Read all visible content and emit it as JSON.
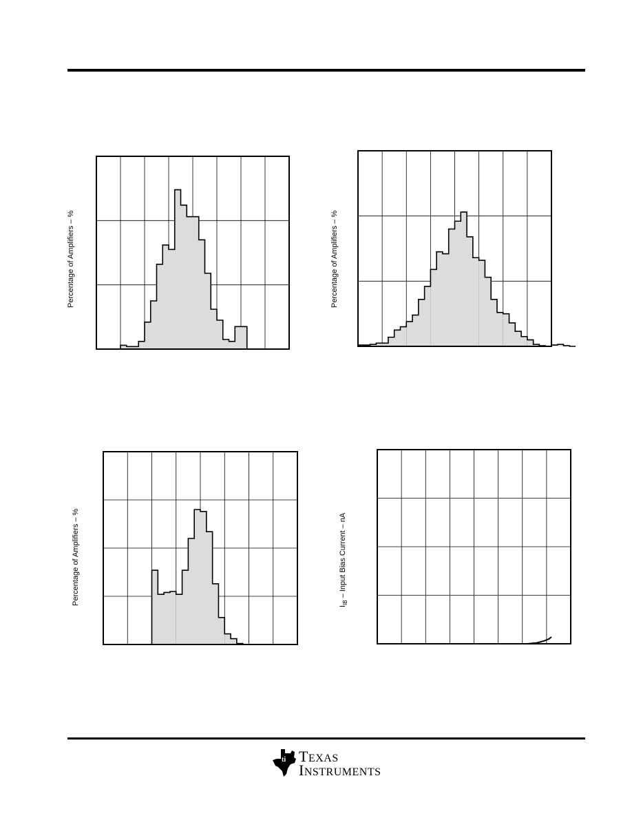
{
  "header": {},
  "charts": {
    "c1": {
      "ylabel": "Percentage of Amplifiers – %"
    },
    "c2": {
      "ylabel": "Percentage of Amplifiers – %"
    },
    "c3": {
      "ylabel": "Percentage of Amplifiers – %"
    },
    "c4": {
      "ylabel_prefix": "I",
      "ylabel_sub": "IB",
      "ylabel_rest": " – Input Bias Current – nA"
    }
  },
  "chart_data": [
    {
      "type": "bar",
      "subtype": "histogram",
      "ylabel": "Percentage of Amplifiers – %",
      "xlim": [
        0,
        8
      ],
      "ylim": [
        0,
        3
      ],
      "grid": true,
      "bins_x0": 1.0,
      "bin_width": 0.25,
      "values": [
        0.06,
        0.04,
        0.04,
        0.12,
        0.42,
        0.75,
        1.32,
        1.62,
        1.55,
        2.48,
        2.24,
        2.06,
        2.06,
        1.7,
        1.18,
        0.62,
        0.45,
        0.15,
        0.12,
        0.35,
        0.35
      ]
    },
    {
      "type": "bar",
      "subtype": "histogram",
      "ylabel": "Percentage of Amplifiers – %",
      "xlim": [
        0,
        8
      ],
      "ylim": [
        0,
        3
      ],
      "grid": true,
      "bins_x0": 0.0,
      "bin_width": 0.25,
      "values": [
        0.02,
        0.02,
        0.03,
        0.05,
        0.05,
        0.14,
        0.25,
        0.3,
        0.38,
        0.48,
        0.72,
        0.92,
        1.18,
        1.45,
        1.42,
        1.8,
        1.92,
        2.06,
        1.68,
        1.36,
        1.32,
        1.06,
        0.72,
        0.52,
        0.5,
        0.36,
        0.23,
        0.15,
        0.1,
        0.03,
        0.01,
        0.0,
        0.02,
        0.03,
        0.01,
        0.0
      ]
    },
    {
      "type": "bar",
      "subtype": "histogram",
      "ylabel": "Percentage of Amplifiers – %",
      "xlim": [
        0,
        8
      ],
      "ylim": [
        0,
        4
      ],
      "grid": true,
      "bins_x0": 2.0,
      "bin_width": 0.25,
      "values": [
        1.54,
        1.04,
        1.08,
        1.1,
        1.04,
        1.54,
        2.2,
        2.8,
        2.76,
        2.34,
        1.26,
        0.56,
        0.22,
        0.12,
        0.02
      ]
    },
    {
      "type": "line",
      "ylabel": "I_IB – Input Bias Current – nA",
      "xlim": [
        0,
        8
      ],
      "ylim": [
        0,
        4
      ],
      "grid": true,
      "series": [
        {
          "x": [
            6.2,
            6.6,
            6.9,
            7.1,
            7.2
          ],
          "y": [
            0.0,
            0.02,
            0.06,
            0.1,
            0.14
          ]
        }
      ]
    }
  ]
}
